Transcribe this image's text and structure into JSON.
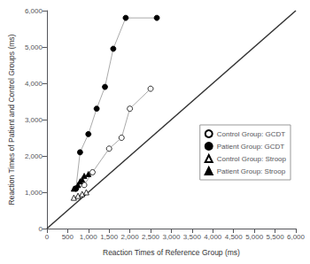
{
  "chart_data": {
    "type": "line",
    "xlabel": "Reaction Times of Reference Group (ms)",
    "ylabel": "Reaction Times of Patient and Control Groups (ms)",
    "xlim": [
      0,
      6000
    ],
    "ylim": [
      0,
      6000
    ],
    "xticks": [
      0,
      500,
      1000,
      1500,
      2000,
      2500,
      3000,
      3500,
      4000,
      4500,
      5000,
      5500,
      6000
    ],
    "yticks": [
      0,
      1000,
      2000,
      3000,
      4000,
      5000,
      6000
    ],
    "grid": false,
    "legend": "lower right",
    "series": [
      {
        "x": [
          0,
          6000
        ],
        "values": [
          0,
          6000
        ],
        "color": "#333333",
        "marker": "none"
      },
      {
        "name": "Control Group: GCDT",
        "x": [
          700,
          900,
          1100,
          1500,
          1800,
          2000,
          2500
        ],
        "values": [
          1100,
          1200,
          1550,
          2200,
          2500,
          3300,
          3850
        ],
        "color": "#aaaaaa",
        "marker": "open_circle"
      },
      {
        "name": "Patient Group: GCDT",
        "x": [
          700,
          800,
          1000,
          1200,
          1400,
          1600,
          1900,
          2650
        ],
        "values": [
          1100,
          2100,
          2600,
          3300,
          3900,
          4950,
          5800,
          5800
        ],
        "color": "#aaaaaa",
        "marker": "filled_circle"
      },
      {
        "name": "Control Group: Stroop",
        "x": [
          650,
          750,
          850,
          950
        ],
        "values": [
          850,
          900,
          950,
          1000
        ],
        "color": "#aaaaaa",
        "marker": "open_triangle"
      },
      {
        "name": "Patient Group: Stroop",
        "x": [
          650,
          750,
          800,
          850,
          900,
          1000
        ],
        "values": [
          1100,
          1200,
          1300,
          1350,
          1450,
          1500
        ],
        "color": "#aaaaaa",
        "marker": "filled_triangle"
      }
    ]
  }
}
